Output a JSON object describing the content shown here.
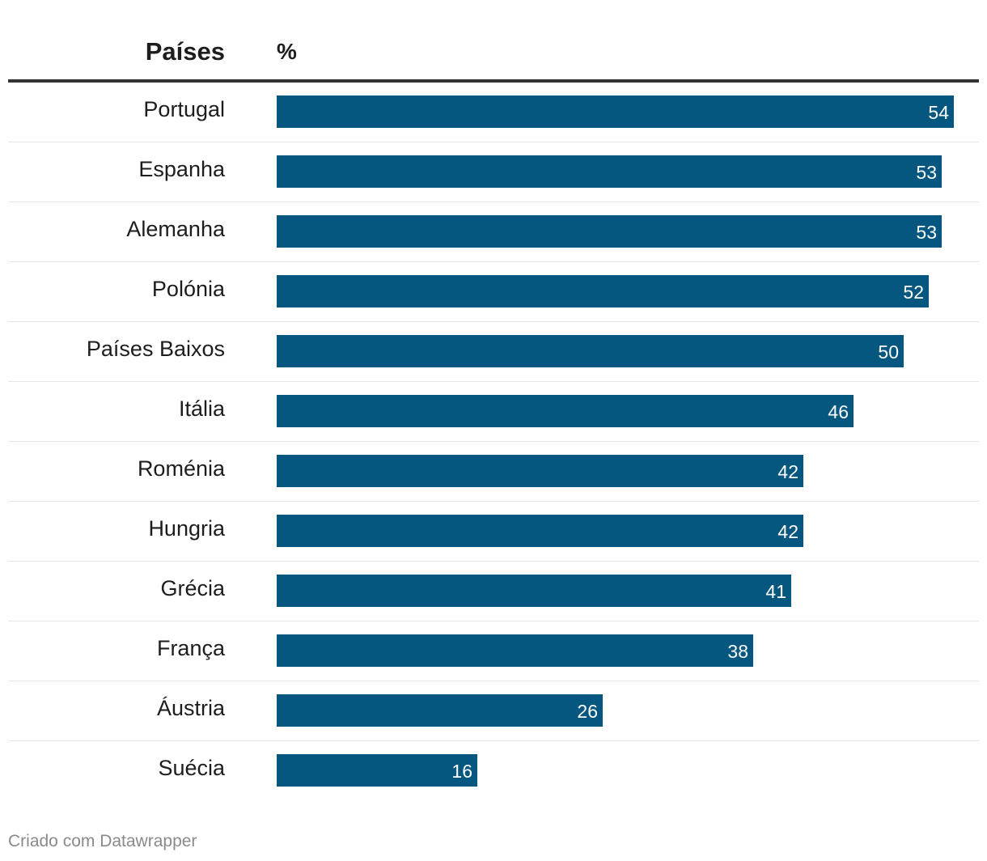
{
  "header": {
    "country_column": "Países",
    "value_column": "%"
  },
  "footer": {
    "credit": "Criado com Datawrapper"
  },
  "colors": {
    "bar": "#05577f",
    "header_rule": "#333333",
    "row_divider": "#e6e6e6",
    "credit_text": "#8a8a8a"
  },
  "chart_data": {
    "type": "bar",
    "orientation": "horizontal",
    "title": "",
    "xlabel": "%",
    "ylabel": "Países",
    "xlim": [
      0,
      56
    ],
    "grid": false,
    "legend": "none",
    "categories": [
      "Portugal",
      "Espanha",
      "Alemanha",
      "Polónia",
      "Países Baixos",
      "Itália",
      "Roménia",
      "Hungria",
      "Grécia",
      "França",
      "Áustria",
      "Suécia"
    ],
    "values": [
      54,
      53,
      53,
      52,
      50,
      46,
      42,
      42,
      41,
      38,
      26,
      16
    ]
  }
}
